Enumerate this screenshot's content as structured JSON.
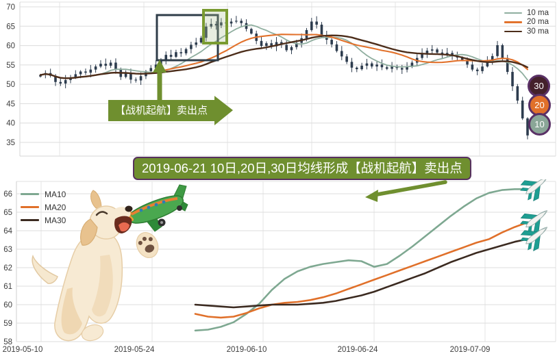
{
  "annotations": {
    "callout": "【战机起航】卖出点",
    "banner": "2019-06-21 10日,20日,30日均线形成【战机起航】卖出点"
  },
  "top_chart": {
    "badges": [
      {
        "label": "30",
        "color": "#44212b"
      },
      {
        "label": "20",
        "color": "#e0702a"
      },
      {
        "label": "10",
        "color": "#8aa697"
      }
    ],
    "badge_border_color": "#5a3166",
    "annotation_color": "#6f8f2f"
  },
  "chart_data": [
    {
      "id": "top",
      "type": "candlestick",
      "legend": [
        "10 ma",
        "20 ma",
        "30 ma"
      ],
      "ma_windows": [
        10,
        20,
        30
      ],
      "ma_colors": [
        "#8fae9f",
        "#e2722c",
        "#4c2d1a"
      ],
      "candle_color": "#2d3c4e",
      "y_ticks": [
        70,
        65,
        60,
        55,
        50,
        45,
        40,
        35
      ],
      "ylim": [
        33,
        71.5
      ],
      "closes": [
        52.4,
        52.9,
        52.2,
        50.6,
        50.2,
        51.1,
        51.8,
        52.6,
        53.3,
        53.0,
        53.8,
        54.6,
        55.3,
        54.8,
        55.6,
        53.9,
        51.9,
        52.8,
        51.2,
        51.0,
        52.1,
        53.4,
        54.2,
        55.1,
        56.3,
        57.6,
        57.1,
        58.3,
        58.0,
        59.1,
        60.2,
        60.8,
        62.0,
        64.9,
        65.6,
        65.2,
        66.0,
        65.7,
        66.2,
        66.4,
        65.8,
        64.3,
        63.1,
        61.2,
        59.9,
        60.6,
        59.8,
        60.9,
        60.2,
        58.8,
        59.6,
        60.7,
        61.9,
        64.0,
        66.2,
        65.4,
        62.7,
        61.5,
        60.3,
        58.6,
        57.2,
        55.8,
        54.3,
        53.9,
        54.8,
        55.4,
        54.6,
        55.1,
        54.4,
        54.0,
        54.7,
        54.2,
        53.8,
        54.5,
        55.6,
        56.8,
        57.9,
        58.7,
        59.0,
        58.2,
        57.6,
        58.1,
        57.4,
        56.9,
        56.2,
        55.1,
        53.8,
        53.4,
        54.6,
        55.9,
        57.3,
        60.1,
        56.8,
        53.2,
        49.5,
        45.8,
        41.2,
        36.8
      ]
    },
    {
      "id": "bottom",
      "type": "line",
      "y_ticks": [
        66,
        65,
        64,
        63,
        62,
        61,
        60,
        59,
        58
      ],
      "ylim": [
        57.8,
        66.8
      ],
      "x_ticks": [
        "2019-05-10",
        "2019-05-24",
        "2019-06-10",
        "2019-06-24",
        "2019-07-09"
      ],
      "series": [
        {
          "name": "MA10",
          "color": "#7ea891",
          "values": [
            58.6,
            58.65,
            58.8,
            59.05,
            59.5,
            60.05,
            60.8,
            61.4,
            61.8,
            62.05,
            62.2,
            62.3,
            62.4,
            62.35,
            62.05,
            62.2,
            62.65,
            63.15,
            63.7,
            64.25,
            64.8,
            65.3,
            65.75,
            66.05,
            66.2,
            66.25,
            66.25
          ]
        },
        {
          "name": "MA20",
          "color": "#e0702a",
          "values": [
            59.5,
            59.35,
            59.3,
            59.35,
            59.55,
            59.8,
            60.0,
            60.1,
            60.15,
            60.25,
            60.4,
            60.6,
            60.85,
            61.1,
            61.35,
            61.6,
            61.85,
            62.1,
            62.35,
            62.6,
            62.85,
            63.1,
            63.35,
            63.55,
            63.9,
            64.2,
            64.45
          ]
        },
        {
          "name": "MA30",
          "color": "#3b2a20",
          "values": [
            60.0,
            59.95,
            59.9,
            59.85,
            59.9,
            59.95,
            60.0,
            60.0,
            60.0,
            60.05,
            60.1,
            60.2,
            60.35,
            60.5,
            60.7,
            60.95,
            61.2,
            61.45,
            61.7,
            62.0,
            62.3,
            62.55,
            62.8,
            63.0,
            63.2,
            63.4,
            63.55
          ]
        }
      ]
    }
  ]
}
